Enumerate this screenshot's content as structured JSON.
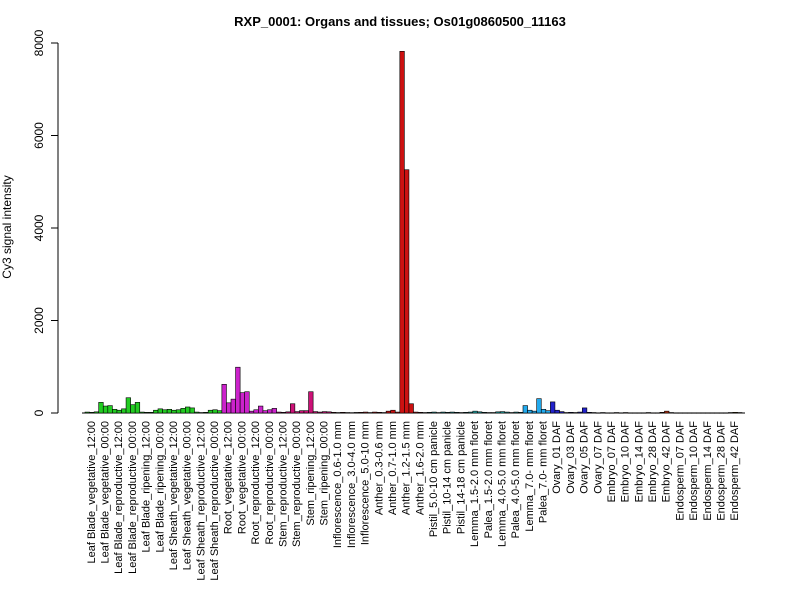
{
  "chart_data": {
    "type": "bar",
    "title": "RXP_0001: Organs and tissues; Os01g0860500_11163",
    "xlabel": "",
    "ylabel": "Cy3 signal intensity",
    "ylim": [
      0,
      8000
    ],
    "yticks": [
      0,
      2000,
      4000,
      6000,
      8000
    ],
    "grid": false,
    "legend": "none",
    "groups": [
      {
        "label": "Leaf Blade_vegetative_12:00",
        "color": "#22cc22",
        "values": [
          20,
          15,
          25
        ]
      },
      {
        "label": "Leaf Blade_vegetative_00:00",
        "color": "#22cc22",
        "values": [
          230,
          150,
          160
        ]
      },
      {
        "label": "Leaf Blade_reproductive_12:00",
        "color": "#22cc22",
        "values": [
          80,
          60,
          90
        ]
      },
      {
        "label": "Leaf Blade_reproductive_00:00",
        "color": "#22cc22",
        "values": [
          330,
          180,
          230
        ]
      },
      {
        "label": "Leaf Blade_ripening_12:00",
        "color": "#22cc22",
        "values": [
          20,
          15,
          15
        ]
      },
      {
        "label": "Leaf Blade_ripening_00:00",
        "color": "#22cc22",
        "values": [
          60,
          90,
          70
        ]
      },
      {
        "label": "Leaf Sheath_vegetative_12:00",
        "color": "#22cc22",
        "values": [
          80,
          60,
          70
        ]
      },
      {
        "label": "Leaf Sheath_vegetative_00:00",
        "color": "#22cc22",
        "values": [
          100,
          130,
          110
        ]
      },
      {
        "label": "Leaf Sheath_reproductive_12:00",
        "color": "#22cc22",
        "values": [
          20,
          10,
          15
        ]
      },
      {
        "label": "Leaf Sheath_reproductive_00:00",
        "color": "#22cc22",
        "values": [
          60,
          70,
          50
        ]
      },
      {
        "label": "Root_vegetative_12:00",
        "color": "#cc22cc",
        "values": [
          620,
          220,
          300
        ]
      },
      {
        "label": "Root_vegetative_00:00",
        "color": "#cc22cc",
        "values": [
          990,
          440,
          460
        ]
      },
      {
        "label": "Root_reproductive_12:00",
        "color": "#cc22cc",
        "values": [
          40,
          70,
          150
        ]
      },
      {
        "label": "Root_reproductive_00:00",
        "color": "#cc22cc",
        "values": [
          50,
          70,
          100
        ]
      },
      {
        "label": "Stem_reproductive_12:00",
        "color": "#cc1177",
        "values": [
          20,
          15,
          25
        ]
      },
      {
        "label": "Stem_reproductive_00:00",
        "color": "#cc1177",
        "values": [
          200,
          30,
          50
        ]
      },
      {
        "label": "Stem_ripening_12:00",
        "color": "#cc1177",
        "values": [
          50,
          460,
          30
        ]
      },
      {
        "label": "Stem_ripening_00:00",
        "color": "#cc1177",
        "values": [
          20,
          30,
          25
        ]
      },
      {
        "label": "Inflorescence_0.6-1.0 mm",
        "color": "#cc2222",
        "values": [
          15,
          10,
          15
        ]
      },
      {
        "label": "Inflorescence_3.0-4.0 mm",
        "color": "#cc2222",
        "values": [
          10,
          8,
          12
        ]
      },
      {
        "label": "Inflorescence_5.0-10 mm",
        "color": "#cc2222",
        "values": [
          15,
          20,
          10
        ]
      },
      {
        "label": "Anther_0.3-0.6 mm",
        "color": "#cc1111",
        "values": [
          20,
          15,
          10
        ]
      },
      {
        "label": "Anther_0.7-1.0 mm",
        "color": "#cc1111",
        "values": [
          40,
          60,
          20
        ]
      },
      {
        "label": "Anther_1.2-1.5 mm",
        "color": "#cc1111",
        "values": [
          7820,
          5260,
          200
        ]
      },
      {
        "label": "Anther_1.6-2.0 mm",
        "color": "#cc1111",
        "values": [
          20,
          15,
          10
        ]
      },
      {
        "label": "Pistil_5.0-10 cm panicle",
        "color": "#22aaaa",
        "values": [
          15,
          20,
          10
        ]
      },
      {
        "label": "Pistil_10-14 cm panicle",
        "color": "#22aaaa",
        "values": [
          20,
          15,
          20
        ]
      },
      {
        "label": "Pistil_14-18 cm panicle",
        "color": "#22aaaa",
        "values": [
          15,
          10,
          15
        ]
      },
      {
        "label": "Lemma_1.5-2.0 mm floret",
        "color": "#22aaaa",
        "values": [
          20,
          40,
          25
        ]
      },
      {
        "label": "Palea_1.5-2.0 mm floret",
        "color": "#22aaaa",
        "values": [
          15,
          10,
          10
        ]
      },
      {
        "label": "Lemma_4.0-5.0 mm floret",
        "color": "#22aaaa",
        "values": [
          25,
          30,
          20
        ]
      },
      {
        "label": "Palea_4.0-5.0 mm floret",
        "color": "#22aaaa",
        "values": [
          10,
          20,
          15
        ]
      },
      {
        "label": "Lemma_7.0- mm floret",
        "color": "#22aaee",
        "values": [
          160,
          60,
          40
        ]
      },
      {
        "label": "Palea_7.0- mm floret",
        "color": "#22aaee",
        "values": [
          310,
          80,
          50
        ]
      },
      {
        "label": "Ovary_01 DAF",
        "color": "#2222cc",
        "values": [
          240,
          60,
          30
        ]
      },
      {
        "label": "Ovary_03 DAF",
        "color": "#2222cc",
        "values": [
          10,
          15,
          10
        ]
      },
      {
        "label": "Ovary_05 DAF",
        "color": "#2222cc",
        "values": [
          20,
          110,
          15
        ]
      },
      {
        "label": "Ovary_07 DAF",
        "color": "#2222cc",
        "values": [
          10,
          5,
          10
        ]
      },
      {
        "label": "Embryo_07 DAF",
        "color": "#bb3311",
        "values": [
          5,
          5,
          10
        ]
      },
      {
        "label": "Embryo_10 DAF",
        "color": "#bb3311",
        "values": [
          5,
          10,
          5
        ]
      },
      {
        "label": "Embryo_14 DAF",
        "color": "#bb3311",
        "values": [
          5,
          5,
          5
        ]
      },
      {
        "label": "Embryo_28 DAF",
        "color": "#bb3311",
        "values": [
          10,
          5,
          5
        ]
      },
      {
        "label": "Embryo_42 DAF",
        "color": "#bb3311",
        "values": [
          15,
          40,
          10
        ]
      },
      {
        "label": "Endosperm_07 DAF",
        "color": "#cc9911",
        "values": [
          5,
          5,
          5
        ]
      },
      {
        "label": "Endosperm_10 DAF",
        "color": "#cc9911",
        "values": [
          5,
          5,
          5
        ]
      },
      {
        "label": "Endosperm_14 DAF",
        "color": "#cc9911",
        "values": [
          5,
          5,
          5
        ]
      },
      {
        "label": "Endosperm_28 DAF",
        "color": "#cc9911",
        "values": [
          5,
          5,
          5
        ]
      },
      {
        "label": "Endosperm_42 DAF",
        "color": "#cc9911",
        "values": [
          10,
          15,
          10
        ]
      }
    ]
  }
}
